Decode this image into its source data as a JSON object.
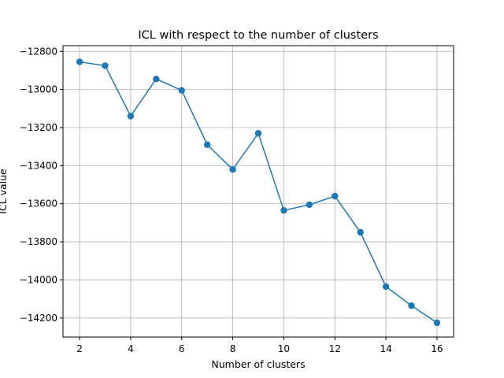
{
  "chart_data": {
    "type": "line",
    "title": "ICL with respect to the number of clusters",
    "xlabel": "Number of clusters",
    "ylabel": "ICL value",
    "xlim": [
      1.35,
      16.65
    ],
    "ylim": [
      -14300,
      -12770
    ],
    "grid": true,
    "xticks": [
      2,
      4,
      6,
      8,
      10,
      12,
      14,
      16
    ],
    "xtick_labels": [
      "2",
      "4",
      "6",
      "8",
      "10",
      "12",
      "14",
      "16"
    ],
    "yticks": [
      -12800,
      -13000,
      -13200,
      -13400,
      -13600,
      -13800,
      -14000,
      -14200
    ],
    "ytick_labels": [
      "−12800",
      "−13000",
      "−13200",
      "−13400",
      "−13600",
      "−13800",
      "−14000",
      "−14200"
    ],
    "series": [
      {
        "color": "#1f77b4",
        "marker": "circle",
        "x": [
          2,
          3,
          4,
          5,
          6,
          7,
          8,
          9,
          10,
          11,
          12,
          13,
          14,
          15,
          16
        ],
        "y": [
          -12855,
          -12875,
          -13140,
          -12945,
          -13005,
          -13290,
          -13420,
          -13230,
          -13635,
          -13605,
          -13560,
          -13750,
          -14035,
          -14135,
          -14225
        ]
      }
    ]
  }
}
